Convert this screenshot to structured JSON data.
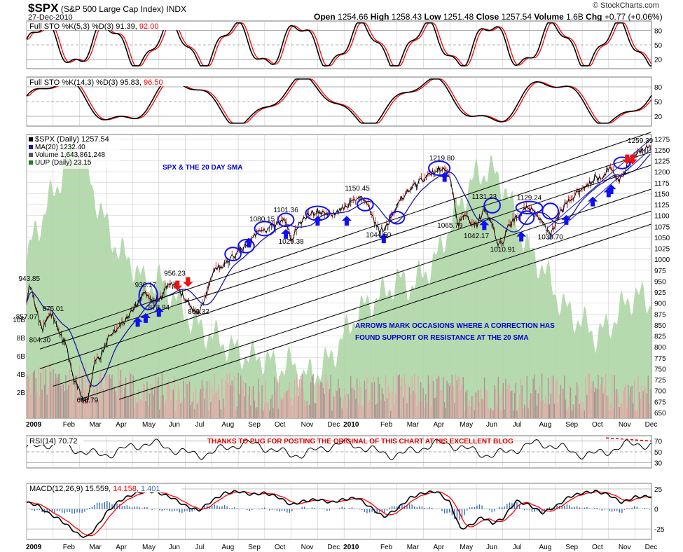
{
  "header": {
    "symbol": "$SPX",
    "description": "(S&P 500 Large Cap Index)",
    "exchange": "INDX",
    "date": "27-Dec-2010",
    "open_label": "Open",
    "open": "1254.66",
    "high_label": "High",
    "high": "1258.43",
    "low_label": "Low",
    "low": "1251.48",
    "close_label": "Close",
    "close": "1257.54",
    "volume_label": "Volume",
    "volume": "1.6B",
    "chg_label": "Chg",
    "chg": "+0.77 (+0.06%)",
    "brand": "© StockCharts.com"
  },
  "colors": {
    "price": "#000000",
    "ma": "#1a1aa0",
    "channel": "#000000",
    "channel_blue": "#2222cc",
    "uup_fill": "#a8d3a0",
    "volume_up": "#e6a7a7",
    "volume_down": "#b08f8f",
    "stoch_k": "#000000",
    "stoch_d": "#ff0000",
    "annotation_blue": "#0000cc",
    "annotation_red": "#dd0000",
    "arrow_blue": "#1111ee",
    "arrow_red": "#ee1111",
    "macd_hist": "#3b6fb6"
  },
  "chart_data": [
    {
      "type": "line",
      "name": "stoch-fast",
      "legend": "Full STO %K(5,3) %D(3) 91.39,",
      "legend_d": "92.00",
      "y_ticks": [
        "80",
        "50",
        "20"
      ],
      "ylim": [
        0,
        100
      ]
    },
    {
      "type": "line",
      "name": "stoch-slow",
      "legend": "Full STO %K(14,3) %D(3) 95.83,",
      "legend_d": "96.50",
      "y_ticks": [
        "80",
        "50",
        "20"
      ],
      "ylim": [
        0,
        100
      ]
    },
    {
      "type": "line",
      "name": "price",
      "legend": [
        "$SPX (Daily) 1257.54",
        "MA(20) 1232.40",
        "Volume 1,643,861,248",
        "UUP (Daily) 23.15"
      ],
      "title_annotation": "SPX & THE 20 DAY SMA",
      "note_annotation": [
        "ARROWS MARK OCCASIONS WHERE A CORRECTION HAS",
        "FOUND SUPPORT OR RESISTANCE AT THE 20 SMA"
      ],
      "ylim": [
        637,
        1285
      ],
      "y_ticks": [
        "1275",
        "1250",
        "1225",
        "1200",
        "1175",
        "1150",
        "1125",
        "1100",
        "1075",
        "1050",
        "1025",
        "1000",
        "975",
        "950",
        "925",
        "900",
        "875",
        "850",
        "825",
        "800",
        "775",
        "750",
        "725",
        "700",
        "675",
        "650"
      ],
      "volume_ticks": [
        "10B",
        "8B",
        "6B",
        "4B",
        "2B"
      ],
      "x_ticks": [
        "2009",
        "Feb",
        "Mar",
        "Apr",
        "May",
        "Jun",
        "Jul",
        "Aug",
        "Sep",
        "Oct",
        "Nov",
        "Dec",
        "2010",
        "Feb",
        "Mar",
        "Apr",
        "May",
        "Jun",
        "Jul",
        "Aug",
        "Sep",
        "Oct",
        "Nov",
        "Dec"
      ],
      "price_labels": [
        {
          "text": "943.85",
          "x": 0.1,
          "y": 943.85
        },
        {
          "text": "875.01",
          "x": 1.0,
          "y": 875.01
        },
        {
          "text": "857.07",
          "x": 0.0,
          "y": 857.07
        },
        {
          "text": "804.30",
          "x": 0.5,
          "y": 804.3
        },
        {
          "text": "666.79",
          "x": 2.3,
          "y": 666.79
        },
        {
          "text": "930.17",
          "x": 4.5,
          "y": 930.17
        },
        {
          "text": "956.23",
          "x": 5.6,
          "y": 956.23
        },
        {
          "text": "878.94",
          "x": 5.0,
          "y": 878.94
        },
        {
          "text": "869.32",
          "x": 6.5,
          "y": 869.32
        },
        {
          "text": "1080.15",
          "x": 8.9,
          "y": 1080.15
        },
        {
          "text": "1101.36",
          "x": 9.8,
          "y": 1101.36
        },
        {
          "text": "1029.38",
          "x": 10.0,
          "y": 1029.38
        },
        {
          "text": "1150.45",
          "x": 12.5,
          "y": 1150.45
        },
        {
          "text": "1044.50",
          "x": 13.3,
          "y": 1044.5
        },
        {
          "text": "1219.80",
          "x": 15.7,
          "y": 1219.8
        },
        {
          "text": "1065.79",
          "x": 16.0,
          "y": 1065.79
        },
        {
          "text": "1131.23",
          "x": 17.3,
          "y": 1131.23
        },
        {
          "text": "1042.17",
          "x": 17.0,
          "y": 1042.17
        },
        {
          "text": "1010.91",
          "x": 18.0,
          "y": 1010.91
        },
        {
          "text": "1129.24",
          "x": 19.0,
          "y": 1129.24
        },
        {
          "text": "1039.70",
          "x": 19.8,
          "y": 1039.7
        },
        {
          "text": "1259.39",
          "x": 23.2,
          "y": 1259.39
        }
      ],
      "close_anchors": [
        [
          0.0,
          903
        ],
        [
          0.12,
          944
        ],
        [
          0.3,
          900
        ],
        [
          0.6,
          840
        ],
        [
          0.8,
          870
        ],
        [
          1.0,
          872
        ],
        [
          1.25,
          830
        ],
        [
          1.5,
          800
        ],
        [
          1.75,
          735
        ],
        [
          2.0,
          700
        ],
        [
          2.15,
          676
        ],
        [
          2.3,
          672
        ],
        [
          2.55,
          760
        ],
        [
          2.8,
          780
        ],
        [
          3.1,
          825
        ],
        [
          3.5,
          840
        ],
        [
          3.8,
          868
        ],
        [
          4.2,
          900
        ],
        [
          4.5,
          925
        ],
        [
          4.75,
          900
        ],
        [
          5.1,
          915
        ],
        [
          5.35,
          942
        ],
        [
          5.6,
          946
        ],
        [
          5.85,
          920
        ],
        [
          6.1,
          900
        ],
        [
          6.35,
          885
        ],
        [
          6.55,
          880
        ],
        [
          6.8,
          925
        ],
        [
          7.1,
          975
        ],
        [
          7.5,
          990
        ],
        [
          7.85,
          1010
        ],
        [
          8.2,
          1025
        ],
        [
          8.5,
          1045
        ],
        [
          8.8,
          1065
        ],
        [
          9.1,
          1070
        ],
        [
          9.4,
          1080
        ],
        [
          9.75,
          1095
        ],
        [
          10.0,
          1045
        ],
        [
          10.3,
          1080
        ],
        [
          10.6,
          1100
        ],
        [
          11.0,
          1110
        ],
        [
          11.35,
          1100
        ],
        [
          11.7,
          1105
        ],
        [
          12.0,
          1120
        ],
        [
          12.3,
          1130
        ],
        [
          12.6,
          1145
        ],
        [
          12.85,
          1130
        ],
        [
          13.1,
          1095
        ],
        [
          13.35,
          1065
        ],
        [
          13.6,
          1075
        ],
        [
          13.9,
          1110
        ],
        [
          14.2,
          1140
        ],
        [
          14.5,
          1160
        ],
        [
          14.8,
          1175
        ],
        [
          15.1,
          1185
        ],
        [
          15.4,
          1200
        ],
        [
          15.7,
          1210
        ],
        [
          15.95,
          1195
        ],
        [
          16.15,
          1145
        ],
        [
          16.3,
          1080
        ],
        [
          16.55,
          1105
        ],
        [
          16.8,
          1075
        ],
        [
          17.05,
          1080
        ],
        [
          17.3,
          1115
        ],
        [
          17.55,
          1090
        ],
        [
          17.8,
          1030
        ],
        [
          18.0,
          1040
        ],
        [
          18.25,
          1080
        ],
        [
          18.5,
          1095
        ],
        [
          18.75,
          1110
        ],
        [
          19.0,
          1120
        ],
        [
          19.3,
          1095
        ],
        [
          19.55,
          1085
        ],
        [
          19.8,
          1052
        ],
        [
          20.0,
          1085
        ],
        [
          20.3,
          1120
        ],
        [
          20.6,
          1140
        ],
        [
          20.9,
          1155
        ],
        [
          21.2,
          1170
        ],
        [
          21.5,
          1185
        ],
        [
          21.8,
          1190
        ],
        [
          22.0,
          1210
        ],
        [
          22.2,
          1195
        ],
        [
          22.4,
          1180
        ],
        [
          22.6,
          1200
        ],
        [
          22.85,
          1225
        ],
        [
          23.05,
          1240
        ],
        [
          23.3,
          1250
        ],
        [
          23.55,
          1257.54
        ]
      ],
      "uup_anchors": [
        [
          0.0,
          0.55
        ],
        [
          0.3,
          0.68
        ],
        [
          0.6,
          0.72
        ],
        [
          0.9,
          0.8
        ],
        [
          1.2,
          0.85
        ],
        [
          1.5,
          0.93
        ],
        [
          1.8,
          0.99
        ],
        [
          2.0,
          0.95
        ],
        [
          2.3,
          0.9
        ],
        [
          2.6,
          0.8
        ],
        [
          3.0,
          0.7
        ],
        [
          3.5,
          0.6
        ],
        [
          4.0,
          0.56
        ],
        [
          4.5,
          0.48
        ],
        [
          5.0,
          0.5
        ],
        [
          5.5,
          0.45
        ],
        [
          6.0,
          0.38
        ],
        [
          6.5,
          0.33
        ],
        [
          7.0,
          0.3
        ],
        [
          7.5,
          0.27
        ],
        [
          8.0,
          0.24
        ],
        [
          8.5,
          0.22
        ],
        [
          9.0,
          0.22
        ],
        [
          9.5,
          0.18
        ],
        [
          10.0,
          0.2
        ],
        [
          10.5,
          0.15
        ],
        [
          11.0,
          0.17
        ],
        [
          11.5,
          0.22
        ],
        [
          12.0,
          0.3
        ],
        [
          12.5,
          0.38
        ],
        [
          13.0,
          0.42
        ],
        [
          13.5,
          0.45
        ],
        [
          14.0,
          0.5
        ],
        [
          14.5,
          0.48
        ],
        [
          15.0,
          0.52
        ],
        [
          15.5,
          0.58
        ],
        [
          16.0,
          0.7
        ],
        [
          16.5,
          0.8
        ],
        [
          17.0,
          0.88
        ],
        [
          17.5,
          0.9
        ],
        [
          18.0,
          0.85
        ],
        [
          18.5,
          0.72
        ],
        [
          19.0,
          0.6
        ],
        [
          19.5,
          0.55
        ],
        [
          20.0,
          0.45
        ],
        [
          20.5,
          0.38
        ],
        [
          21.0,
          0.35
        ],
        [
          21.5,
          0.3
        ],
        [
          22.0,
          0.33
        ],
        [
          22.5,
          0.4
        ],
        [
          23.0,
          0.45
        ],
        [
          23.5,
          0.42
        ]
      ],
      "channels_black": [
        {
          "x1": 0.5,
          "y1": 817,
          "x2": 23.6,
          "y2": 1290
        },
        {
          "x1": 0.5,
          "y1": 795,
          "x2": 23.6,
          "y2": 1245
        },
        {
          "x1": 0.5,
          "y1": 750,
          "x2": 23.6,
          "y2": 1215
        },
        {
          "x1": 1.0,
          "y1": 710,
          "x2": 23.6,
          "y2": 1160
        },
        {
          "x1": 2.0,
          "y1": 680,
          "x2": 23.6,
          "y2": 1110
        },
        {
          "x1": 3.5,
          "y1": 680,
          "x2": 23.6,
          "y2": 1080
        }
      ],
      "channels_blue": [
        {
          "x1": 19.7,
          "y1": 1072,
          "x2": 23.6,
          "y2": 1275
        },
        {
          "x1": 19.7,
          "y1": 1045,
          "x2": 23.6,
          "y2": 1252
        }
      ],
      "circles": [
        [
          4.6,
          915,
          0.35,
          30
        ],
        [
          7.8,
          1012,
          0.3,
          15
        ],
        [
          8.3,
          1030,
          0.3,
          15
        ],
        [
          9.0,
          1070,
          0.38,
          16
        ],
        [
          9.8,
          1090,
          0.3,
          15
        ],
        [
          11.0,
          1105,
          0.45,
          16
        ],
        [
          12.8,
          1125,
          0.3,
          14
        ],
        [
          14.0,
          1095,
          0.28,
          14
        ],
        [
          15.6,
          1208,
          0.4,
          16
        ],
        [
          17.6,
          1123,
          0.3,
          17
        ],
        [
          18.9,
          1095,
          0.28,
          15
        ],
        [
          19.0,
          1118,
          0.5,
          14
        ],
        [
          19.8,
          1110,
          0.3,
          18
        ],
        [
          22.5,
          1220,
          0.3,
          13
        ]
      ],
      "arrows_up": [
        [
          4.2,
          857
        ],
        [
          4.5,
          866
        ],
        [
          5.0,
          880
        ],
        [
          8.4,
          1038
        ],
        [
          9.8,
          1058
        ],
        [
          11.0,
          1088
        ],
        [
          12.1,
          1088
        ],
        [
          13.5,
          1048
        ],
        [
          15.8,
          1188
        ],
        [
          17.3,
          1078
        ],
        [
          18.7,
          1052
        ],
        [
          20.4,
          1090
        ],
        [
          21.4,
          1132
        ],
        [
          22.0,
          1153
        ],
        [
          22.1,
          1160
        ]
      ],
      "arrows_down": [
        [
          5.7,
          940
        ],
        [
          6.1,
          948
        ],
        [
          22.7,
          1228
        ],
        [
          22.9,
          1228
        ]
      ]
    },
    {
      "type": "line",
      "name": "rsi",
      "legend": "RSI(14) 70.72",
      "annotation": "THANKS TO PUG FOR POSTING THE ORIGINAL OF THIS CHART AT HIS EXCELLENT BLOG",
      "y_ticks": [
        "70",
        "50",
        "30"
      ],
      "ylim": [
        20,
        80
      ]
    },
    {
      "type": "line",
      "name": "macd",
      "legend": "MACD(12,26,9) 15.559,",
      "legend_signal": "14.158,",
      "legend_hist": "1.401",
      "y_ticks": [
        "25",
        "0",
        "-25"
      ],
      "ylim": [
        -38,
        32
      ],
      "macd_anchors": [
        [
          0.0,
          8
        ],
        [
          0.4,
          5
        ],
        [
          0.8,
          -5
        ],
        [
          1.2,
          -12
        ],
        [
          1.6,
          -22
        ],
        [
          2.0,
          -33
        ],
        [
          2.3,
          -35
        ],
        [
          2.7,
          -20
        ],
        [
          3.0,
          -5
        ],
        [
          3.5,
          10
        ],
        [
          4.0,
          18
        ],
        [
          4.5,
          23
        ],
        [
          5.0,
          20
        ],
        [
          5.5,
          14
        ],
        [
          6.0,
          4
        ],
        [
          6.5,
          -2
        ],
        [
          7.0,
          10
        ],
        [
          7.5,
          20
        ],
        [
          8.0,
          22
        ],
        [
          8.5,
          18
        ],
        [
          9.0,
          20
        ],
        [
          9.5,
          15
        ],
        [
          10.0,
          5
        ],
        [
          10.5,
          10
        ],
        [
          11.0,
          12
        ],
        [
          11.5,
          8
        ],
        [
          12.0,
          12
        ],
        [
          12.5,
          14
        ],
        [
          13.0,
          2
        ],
        [
          13.5,
          -10
        ],
        [
          14.0,
          0
        ],
        [
          14.5,
          14
        ],
        [
          15.0,
          20
        ],
        [
          15.5,
          22
        ],
        [
          16.0,
          8
        ],
        [
          16.4,
          -25
        ],
        [
          16.8,
          -20
        ],
        [
          17.2,
          -10
        ],
        [
          17.6,
          -18
        ],
        [
          18.0,
          -12
        ],
        [
          18.5,
          10
        ],
        [
          19.0,
          5
        ],
        [
          19.5,
          -5
        ],
        [
          20.0,
          3
        ],
        [
          20.5,
          15
        ],
        [
          21.0,
          20
        ],
        [
          21.5,
          22
        ],
        [
          22.0,
          18
        ],
        [
          22.5,
          8
        ],
        [
          23.0,
          15
        ],
        [
          23.55,
          15.6
        ]
      ]
    }
  ]
}
